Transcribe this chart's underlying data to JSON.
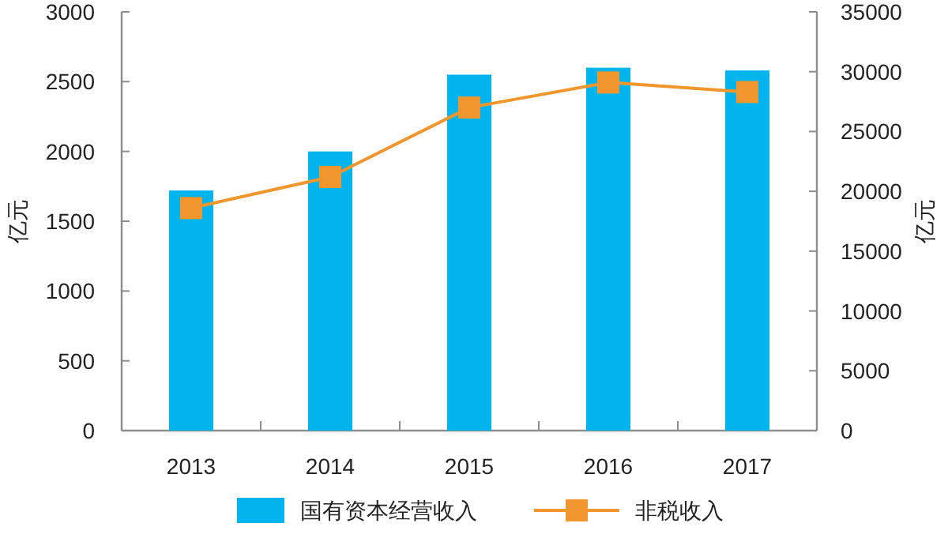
{
  "chart_data": {
    "type": "bar",
    "categories": [
      "2013",
      "2014",
      "2015",
      "2016",
      "2017"
    ],
    "series": [
      {
        "name": "国有资本经营收入",
        "color": "#00b4ec",
        "values": [
          1720,
          2000,
          2550,
          2600,
          2580
        ]
      },
      {
        "name": "非税收入",
        "type": "line",
        "axis": "y2",
        "color": "#f0962d",
        "marker": "square",
        "values": [
          18600,
          21200,
          27000,
          29100,
          28300
        ]
      }
    ],
    "ylabel": "亿元",
    "y2label": "亿元",
    "ylim": [
      0,
      3000
    ],
    "yticks": [
      0,
      500,
      1000,
      1500,
      2000,
      2500,
      3000
    ],
    "y2lim": [
      0,
      35000
    ],
    "y2ticks": [
      0,
      5000,
      10000,
      15000,
      20000,
      25000,
      30000,
      35000
    ],
    "legend": "bottom"
  }
}
